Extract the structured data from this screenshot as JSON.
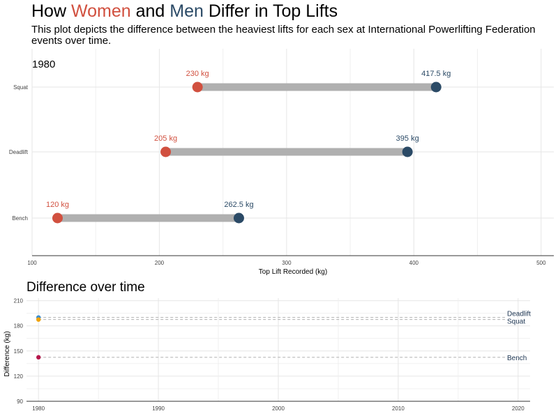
{
  "header": {
    "title_parts": {
      "prefix": "How ",
      "women": "Women",
      "middle": " and ",
      "men": "Men",
      "suffix": " Differ in Top Lifts"
    },
    "subtitle": "This plot depicts the difference between the heaviest lifts for each sex at International Powerlifting Federation events over time."
  },
  "colors": {
    "women": "#d1503f",
    "men": "#2b4a66",
    "segment": "#b0b0b0",
    "grid": "#e6e6e6",
    "bench_point": "#b5174b",
    "squat_point": "#f0a30a",
    "deadlift_point": "#3c8fd1"
  },
  "chart_data": [
    {
      "type": "dumbbell",
      "year_label": "1980",
      "categories": [
        "Squat",
        "Deadlift",
        "Bench"
      ],
      "series": [
        {
          "name": "Women",
          "values": [
            230,
            205,
            120
          ],
          "labels": [
            "230 kg",
            "205 kg",
            "120 kg"
          ]
        },
        {
          "name": "Men",
          "values": [
            417.5,
            395,
            262.5
          ],
          "labels": [
            "417.5 kg",
            "395 kg",
            "262.5 kg"
          ]
        }
      ],
      "xlabel": "Top Lift Recorded (kg)",
      "xlim": [
        100,
        510
      ],
      "xticks": [
        100,
        200,
        300,
        400,
        500
      ],
      "grid": true
    },
    {
      "type": "scatter",
      "title": "Difference over time",
      "ylabel": "Difference (kg)",
      "xticks": [
        1980,
        1990,
        2000,
        2010,
        2020
      ],
      "yticks": [
        90,
        120,
        150,
        180,
        210
      ],
      "xlim": [
        1979,
        2021
      ],
      "ylim": [
        90,
        213
      ],
      "series": [
        {
          "name": "Deadlift",
          "x": [
            1980
          ],
          "y": [
            190
          ],
          "ref_line": 190
        },
        {
          "name": "Squat",
          "x": [
            1980
          ],
          "y": [
            187.5
          ],
          "ref_line": 187.5
        },
        {
          "name": "Bench",
          "x": [
            1980
          ],
          "y": [
            142.5
          ],
          "ref_line": 142.5
        }
      ],
      "grid": true
    }
  ]
}
